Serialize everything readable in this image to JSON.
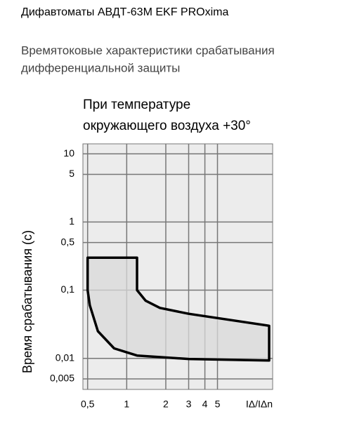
{
  "page_title": "Дифавтоматы АВДТ-63М EKF PROxima",
  "subtitle": [
    "Времятоковые характеристики срабатывания",
    "дифференциальной защиты"
  ],
  "chart_data": {
    "type": "area",
    "title": [
      "При температуре",
      "окружающего воздуха +30°"
    ],
    "y_label": "Время срабатывания (с)",
    "x_label": "IΔ/IΔn",
    "x": [
      0.5,
      1.2,
      1.2,
      1.4,
      1.8,
      3,
      12.5,
      12.5,
      3,
      1.2,
      0.8,
      0.6,
      0.52,
      0.5,
      0.5
    ],
    "series": [
      {
        "color": "#d9d9d9",
        "edge_color": "#000000",
        "values": [
          0.3,
          0.3,
          0.1,
          0.07,
          0.055,
          0.045,
          0.03,
          0.0093,
          0.0098,
          0.011,
          0.014,
          0.025,
          0.06,
          0.1,
          0.3
        ]
      }
    ],
    "xlim": [
      0.46,
      13.3
    ],
    "ylim": [
      0.0035,
      14
    ],
    "xscale": "log",
    "yscale": "log",
    "xticks": [
      {
        "value": 0.5,
        "label": "0,5"
      },
      1,
      2,
      3,
      4,
      5
    ],
    "yticks": [
      {
        "value": 0.005,
        "label": "0,005"
      },
      {
        "value": 0.01,
        "label": "0,01"
      },
      {
        "value": 0.1,
        "label": "0,1"
      },
      {
        "value": 0.5,
        "label": "0,5"
      },
      1,
      5,
      10
    ],
    "grid": true
  }
}
